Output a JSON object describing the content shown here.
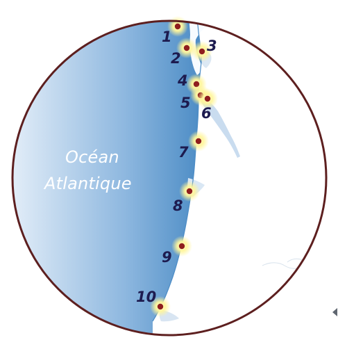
{
  "map": {
    "ocean_label_line1": "Océan",
    "ocean_label_line2": "Atlantique",
    "colors": {
      "background": "#f5f0ef",
      "ocean_dark": "#4c8cc5",
      "ocean_light": "#dbe8f5",
      "land": "#ffffff",
      "border": "#5d1f1f",
      "marker_fill": "#8f1e1e",
      "marker_glow": "#fff59a",
      "marker_label": "#1d1b4f"
    },
    "markers": [
      {
        "id": "1",
        "label": "1"
      },
      {
        "id": "2",
        "label": "2"
      },
      {
        "id": "3",
        "label": "3"
      },
      {
        "id": "4",
        "label": "4"
      },
      {
        "id": "5",
        "label": "5"
      },
      {
        "id": "6",
        "label": "6"
      },
      {
        "id": "7",
        "label": "7"
      },
      {
        "id": "8",
        "label": "8"
      },
      {
        "id": "9",
        "label": "9"
      },
      {
        "id": "10",
        "label": "10"
      }
    ]
  }
}
